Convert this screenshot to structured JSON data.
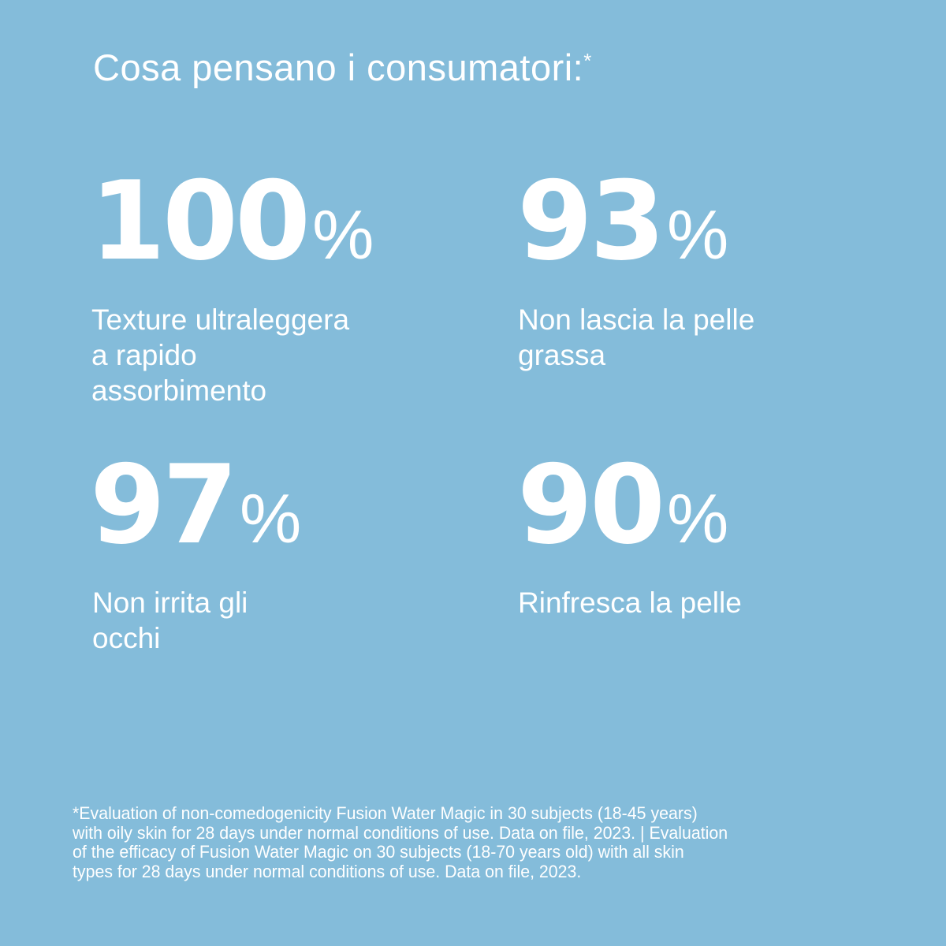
{
  "title": {
    "text": "Cosa pensano i consumatori:",
    "marker": "*"
  },
  "stats": [
    {
      "value": "100",
      "unit": "%",
      "label_lines": [
        "Texture ultraleggera",
        "a rapido",
        "assorbimento"
      ]
    },
    {
      "value": "93",
      "unit": "%",
      "label_lines": [
        "Non lascia la pelle",
        "grassa"
      ]
    },
    {
      "value": "97",
      "unit": "%",
      "label_lines": [
        "Non irrita gli",
        "occhi"
      ]
    },
    {
      "value": "90",
      "unit": "%",
      "label_lines": [
        "Rinfresca la pelle"
      ]
    }
  ],
  "footnote_lines": [
    "*Evaluation of non-comedogenicity Fusion Water Magic in 30 subjects (18-45 years)",
    "with oily skin for 28 days under normal conditions of use. Data on file, 2023. | Evaluation",
    "of the efficacy of Fusion Water Magic on 30 subjects (18-70 years old) with all skin",
    "types for 28 days under normal conditions of use. Data on file, 2023."
  ],
  "colors": {
    "background": "#84bcda",
    "text": "#ffffff"
  }
}
